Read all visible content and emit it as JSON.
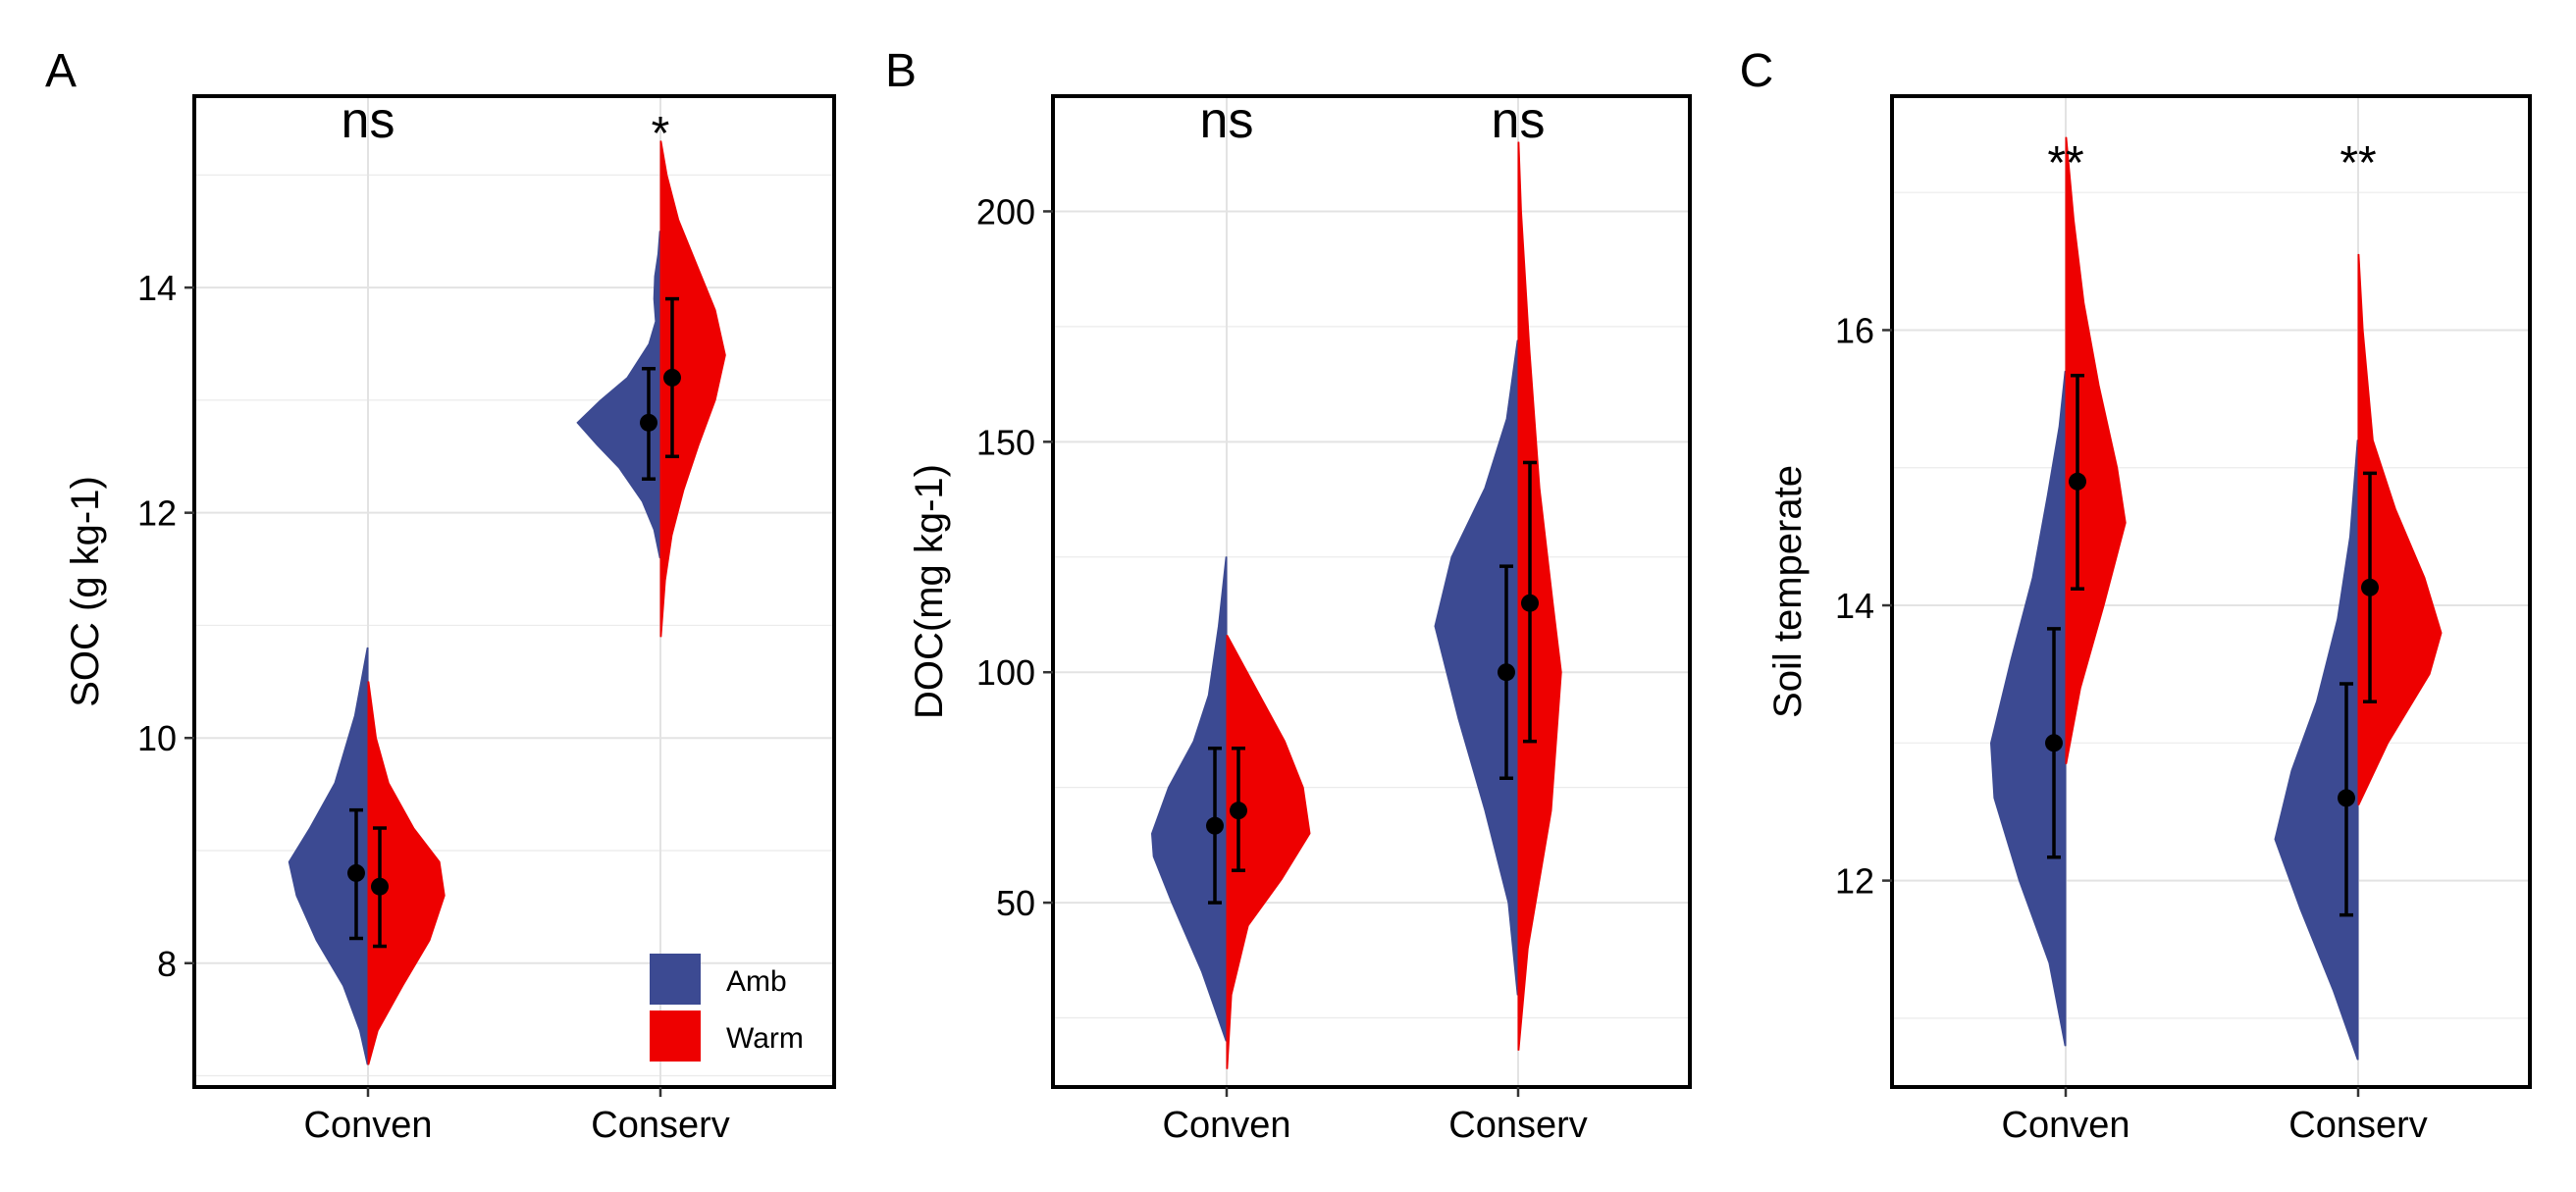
{
  "chart_data": [
    {
      "type": "violin",
      "panel_label": "A",
      "title": "",
      "xlabel": "",
      "ylabel": "SOC (g kg-1)",
      "categories": [
        "Conven",
        "Conserv"
      ],
      "ylim": [
        6.9,
        15.7
      ],
      "yticks": [
        8,
        10,
        12,
        14
      ],
      "grid": true,
      "legend": {
        "position": "bottom-right",
        "entries": [
          "Amb",
          "Warm"
        ]
      },
      "significance": [
        "ns",
        "*"
      ],
      "series": [
        {
          "name": "Amb",
          "color": "#3C4A92",
          "groups": [
            {
              "category": "Conven",
              "mean": 8.8,
              "lower": 8.22,
              "upper": 9.36,
              "min": 7.1,
              "max": 10.8,
              "profile": [
                [
                  7.1,
                  0.01
                ],
                [
                  7.4,
                  0.1
                ],
                [
                  7.8,
                  0.3
                ],
                [
                  8.2,
                  0.62
                ],
                [
                  8.6,
                  0.86
                ],
                [
                  8.9,
                  0.95
                ],
                [
                  9.2,
                  0.7
                ],
                [
                  9.6,
                  0.4
                ],
                [
                  10.2,
                  0.16
                ],
                [
                  10.8,
                  0.01
                ]
              ]
            },
            {
              "category": "Conserv",
              "mean": 12.8,
              "lower": 12.3,
              "upper": 13.28,
              "min": 11.6,
              "max": 14.5,
              "profile": [
                [
                  11.6,
                  0.01
                ],
                [
                  11.85,
                  0.08
                ],
                [
                  12.1,
                  0.22
                ],
                [
                  12.4,
                  0.5
                ],
                [
                  12.6,
                  0.76
                ],
                [
                  12.8,
                  1.0
                ],
                [
                  13.0,
                  0.72
                ],
                [
                  13.2,
                  0.4
                ],
                [
                  13.5,
                  0.14
                ],
                [
                  13.7,
                  0.06
                ],
                [
                  13.9,
                  0.08
                ],
                [
                  14.1,
                  0.07
                ],
                [
                  14.3,
                  0.03
                ],
                [
                  14.5,
                  0.01
                ]
              ]
            }
          ]
        },
        {
          "name": "Warm",
          "color": "#EE0000",
          "groups": [
            {
              "category": "Conven",
              "mean": 8.68,
              "lower": 8.15,
              "upper": 9.2,
              "min": 7.1,
              "max": 10.5,
              "profile": [
                [
                  7.1,
                  0.01
                ],
                [
                  7.4,
                  0.12
                ],
                [
                  7.8,
                  0.42
                ],
                [
                  8.2,
                  0.74
                ],
                [
                  8.6,
                  0.92
                ],
                [
                  8.9,
                  0.86
                ],
                [
                  9.2,
                  0.55
                ],
                [
                  9.6,
                  0.25
                ],
                [
                  10.0,
                  0.1
                ],
                [
                  10.5,
                  0.01
                ]
              ]
            },
            {
              "category": "Conserv",
              "mean": 13.2,
              "lower": 12.5,
              "upper": 13.9,
              "min": 10.9,
              "max": 15.3,
              "profile": [
                [
                  10.9,
                  0.01
                ],
                [
                  11.4,
                  0.06
                ],
                [
                  11.8,
                  0.14
                ],
                [
                  12.2,
                  0.28
                ],
                [
                  12.6,
                  0.46
                ],
                [
                  13.0,
                  0.66
                ],
                [
                  13.4,
                  0.78
                ],
                [
                  13.8,
                  0.66
                ],
                [
                  14.2,
                  0.44
                ],
                [
                  14.6,
                  0.22
                ],
                [
                  15.0,
                  0.08
                ],
                [
                  15.3,
                  0.01
                ]
              ]
            }
          ]
        }
      ]
    },
    {
      "type": "violin",
      "panel_label": "B",
      "title": "",
      "xlabel": "",
      "ylabel": "DOC(mg kg-1)",
      "categories": [
        "Conven",
        "Conserv"
      ],
      "ylim": [
        10,
        225
      ],
      "yticks": [
        50,
        100,
        150,
        200
      ],
      "grid": true,
      "significance": [
        "ns",
        "ns"
      ],
      "series": [
        {
          "name": "Amb",
          "color": "#3C4A92",
          "groups": [
            {
              "category": "Conven",
              "mean": 66.7,
              "lower": 50,
              "upper": 83.5,
              "min": 20,
              "max": 125,
              "profile": [
                [
                  20,
                  0.01
                ],
                [
                  35,
                  0.3
                ],
                [
                  50,
                  0.66
                ],
                [
                  60,
                  0.88
                ],
                [
                  65,
                  0.9
                ],
                [
                  75,
                  0.7
                ],
                [
                  85,
                  0.4
                ],
                [
                  95,
                  0.22
                ],
                [
                  110,
                  0.1
                ],
                [
                  125,
                  0.01
                ]
              ]
            },
            {
              "category": "Conserv",
              "mean": 100,
              "lower": 77,
              "upper": 123,
              "min": 30,
              "max": 172,
              "profile": [
                [
                  30,
                  0.01
                ],
                [
                  50,
                  0.12
                ],
                [
                  70,
                  0.4
                ],
                [
                  90,
                  0.72
                ],
                [
                  110,
                  1.0
                ],
                [
                  125,
                  0.8
                ],
                [
                  140,
                  0.4
                ],
                [
                  155,
                  0.14
                ],
                [
                  172,
                  0.01
                ]
              ]
            }
          ]
        },
        {
          "name": "Warm",
          "color": "#EE0000",
          "groups": [
            {
              "category": "Conven",
              "mean": 70,
              "lower": 57,
              "upper": 83.5,
              "min": 14,
              "max": 108,
              "profile": [
                [
                  14,
                  0.01
                ],
                [
                  30,
                  0.06
                ],
                [
                  45,
                  0.26
                ],
                [
                  55,
                  0.66
                ],
                [
                  65,
                  1.0
                ],
                [
                  75,
                  0.92
                ],
                [
                  85,
                  0.7
                ],
                [
                  95,
                  0.4
                ],
                [
                  108,
                  0.01
                ]
              ]
            },
            {
              "category": "Conserv",
              "mean": 115,
              "lower": 85,
              "upper": 145.5,
              "min": 18,
              "max": 215,
              "profile": [
                [
                  18,
                  0.01
                ],
                [
                  40,
                  0.12
                ],
                [
                  70,
                  0.4
                ],
                [
                  100,
                  0.52
                ],
                [
                  115,
                  0.42
                ],
                [
                  140,
                  0.26
                ],
                [
                  170,
                  0.14
                ],
                [
                  200,
                  0.04
                ],
                [
                  215,
                  0.01
                ]
              ]
            }
          ]
        }
      ]
    },
    {
      "type": "violin",
      "panel_label": "C",
      "title": "",
      "xlabel": "",
      "ylabel": "Soil temperate",
      "categories": [
        "Conven",
        "Conserv"
      ],
      "ylim": [
        10.5,
        17.7
      ],
      "yticks": [
        12,
        14,
        16
      ],
      "grid": true,
      "significance": [
        "**",
        "**"
      ],
      "series": [
        {
          "name": "Amb",
          "color": "#3C4A92",
          "groups": [
            {
              "category": "Conven",
              "mean": 13.0,
              "lower": 12.17,
              "upper": 13.83,
              "min": 10.8,
              "max": 15.7,
              "profile": [
                [
                  10.8,
                  0.01
                ],
                [
                  11.4,
                  0.2
                ],
                [
                  12.0,
                  0.56
                ],
                [
                  12.6,
                  0.86
                ],
                [
                  13.0,
                  0.9
                ],
                [
                  13.6,
                  0.66
                ],
                [
                  14.2,
                  0.4
                ],
                [
                  14.8,
                  0.22
                ],
                [
                  15.3,
                  0.08
                ],
                [
                  15.7,
                  0.01
                ]
              ]
            },
            {
              "category": "Conserv",
              "mean": 12.6,
              "lower": 11.75,
              "upper": 13.43,
              "min": 10.7,
              "max": 15.2,
              "profile": [
                [
                  10.7,
                  0.01
                ],
                [
                  11.2,
                  0.3
                ],
                [
                  11.8,
                  0.7
                ],
                [
                  12.3,
                  1.0
                ],
                [
                  12.8,
                  0.8
                ],
                [
                  13.3,
                  0.5
                ],
                [
                  13.9,
                  0.25
                ],
                [
                  14.5,
                  0.1
                ],
                [
                  15.2,
                  0.01
                ]
              ]
            }
          ]
        },
        {
          "name": "Warm",
          "color": "#EE0000",
          "groups": [
            {
              "category": "Conven",
              "mean": 14.9,
              "lower": 14.12,
              "upper": 15.67,
              "min": 12.85,
              "max": 17.4,
              "profile": [
                [
                  12.85,
                  0.01
                ],
                [
                  13.4,
                  0.18
                ],
                [
                  14.0,
                  0.46
                ],
                [
                  14.6,
                  0.72
                ],
                [
                  15.0,
                  0.62
                ],
                [
                  15.6,
                  0.4
                ],
                [
                  16.2,
                  0.22
                ],
                [
                  16.8,
                  0.1
                ],
                [
                  17.4,
                  0.01
                ]
              ]
            },
            {
              "category": "Conserv",
              "mean": 14.13,
              "lower": 13.3,
              "upper": 14.96,
              "min": 12.55,
              "max": 16.55,
              "profile": [
                [
                  12.55,
                  0.01
                ],
                [
                  13.0,
                  0.36
                ],
                [
                  13.5,
                  0.86
                ],
                [
                  13.8,
                  1.0
                ],
                [
                  14.2,
                  0.8
                ],
                [
                  14.7,
                  0.45
                ],
                [
                  15.2,
                  0.18
                ],
                [
                  15.6,
                  0.12
                ],
                [
                  16.0,
                  0.06
                ],
                [
                  16.55,
                  0.01
                ]
              ]
            }
          ]
        }
      ]
    }
  ]
}
